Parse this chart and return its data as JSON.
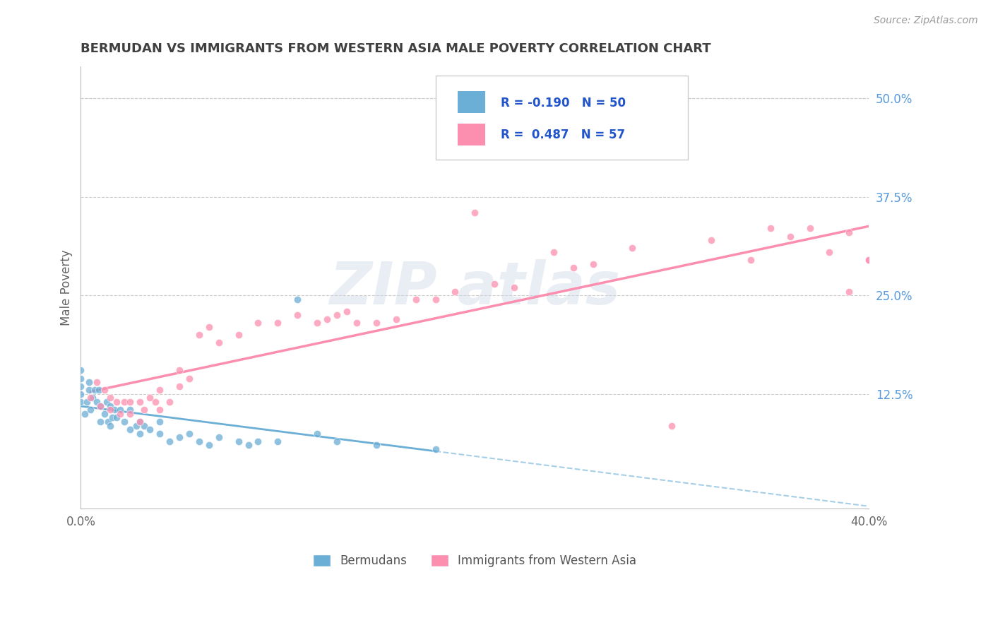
{
  "title": "BERMUDAN VS IMMIGRANTS FROM WESTERN ASIA MALE POVERTY CORRELATION CHART",
  "source": "Source: ZipAtlas.com",
  "ylabel": "Male Poverty",
  "xlim": [
    0.0,
    0.4
  ],
  "ylim": [
    -0.02,
    0.54
  ],
  "y_ticks_right": [
    0.125,
    0.25,
    0.375,
    0.5
  ],
  "y_tick_labels_right": [
    "12.5%",
    "25.0%",
    "37.5%",
    "50.0%"
  ],
  "bermudans_color": "#6baed6",
  "immigrants_color": "#fc8faf",
  "title_color": "#404040",
  "right_label_color": "#5599dd",
  "background_color": "#ffffff",
  "grid_color": "#cccccc",
  "bermudans_scatter_x": [
    0.0,
    0.0,
    0.0,
    0.0,
    0.0,
    0.002,
    0.003,
    0.004,
    0.004,
    0.005,
    0.006,
    0.007,
    0.008,
    0.009,
    0.01,
    0.01,
    0.012,
    0.013,
    0.014,
    0.015,
    0.015,
    0.016,
    0.017,
    0.018,
    0.02,
    0.022,
    0.025,
    0.025,
    0.028,
    0.03,
    0.03,
    0.032,
    0.035,
    0.04,
    0.04,
    0.045,
    0.05,
    0.055,
    0.06,
    0.065,
    0.07,
    0.08,
    0.085,
    0.09,
    0.1,
    0.11,
    0.12,
    0.13,
    0.15,
    0.18
  ],
  "bermudans_scatter_y": [
    0.115,
    0.125,
    0.135,
    0.145,
    0.155,
    0.1,
    0.115,
    0.13,
    0.14,
    0.105,
    0.12,
    0.13,
    0.115,
    0.13,
    0.09,
    0.11,
    0.1,
    0.115,
    0.09,
    0.085,
    0.11,
    0.095,
    0.105,
    0.095,
    0.105,
    0.09,
    0.08,
    0.105,
    0.085,
    0.075,
    0.09,
    0.085,
    0.08,
    0.075,
    0.09,
    0.065,
    0.07,
    0.075,
    0.065,
    0.06,
    0.07,
    0.065,
    0.06,
    0.065,
    0.065,
    0.245,
    0.075,
    0.065,
    0.06,
    0.055
  ],
  "immigrants_scatter_x": [
    0.005,
    0.008,
    0.01,
    0.012,
    0.015,
    0.015,
    0.018,
    0.02,
    0.022,
    0.025,
    0.025,
    0.03,
    0.03,
    0.032,
    0.035,
    0.038,
    0.04,
    0.04,
    0.045,
    0.05,
    0.05,
    0.055,
    0.06,
    0.065,
    0.07,
    0.08,
    0.09,
    0.1,
    0.11,
    0.12,
    0.125,
    0.13,
    0.135,
    0.14,
    0.15,
    0.16,
    0.17,
    0.18,
    0.19,
    0.2,
    0.21,
    0.22,
    0.24,
    0.25,
    0.26,
    0.28,
    0.3,
    0.32,
    0.34,
    0.35,
    0.36,
    0.37,
    0.38,
    0.39,
    0.39,
    0.4,
    0.4
  ],
  "immigrants_scatter_y": [
    0.12,
    0.14,
    0.11,
    0.13,
    0.105,
    0.12,
    0.115,
    0.1,
    0.115,
    0.1,
    0.115,
    0.09,
    0.115,
    0.105,
    0.12,
    0.115,
    0.105,
    0.13,
    0.115,
    0.135,
    0.155,
    0.145,
    0.2,
    0.21,
    0.19,
    0.2,
    0.215,
    0.215,
    0.225,
    0.215,
    0.22,
    0.225,
    0.23,
    0.215,
    0.215,
    0.22,
    0.245,
    0.245,
    0.255,
    0.355,
    0.265,
    0.26,
    0.305,
    0.285,
    0.29,
    0.31,
    0.085,
    0.32,
    0.295,
    0.335,
    0.325,
    0.335,
    0.305,
    0.33,
    0.255,
    0.295,
    0.295
  ]
}
